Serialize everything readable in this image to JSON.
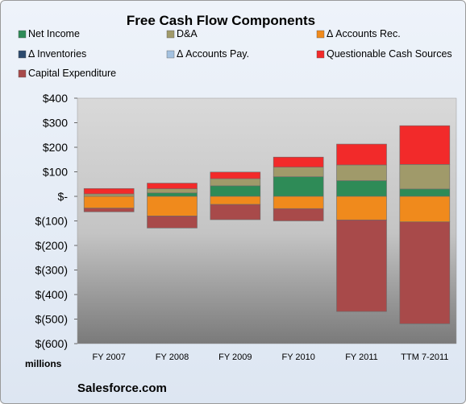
{
  "chart_data": {
    "type": "bar",
    "stacked": true,
    "title": "Free Cash Flow Components",
    "categories": [
      "FY 2007",
      "FY 2008",
      "FY 2009",
      "FY 2010",
      "FY 2011",
      "TTM 7-2011"
    ],
    "ylim": [
      -600,
      400
    ],
    "yticks": [
      400,
      300,
      200,
      100,
      0,
      -100,
      -200,
      -300,
      -400,
      -500,
      -600
    ],
    "ytick_labels": [
      "$400",
      "$300",
      "$200",
      "$100",
      "$-",
      "$(100)",
      "$(200)",
      "$(300)",
      "$(400)",
      "$(500)",
      "$(600)"
    ],
    "units_label": "millions",
    "legend_position": "top",
    "grid": false,
    "series": [
      {
        "name": "Net Income",
        "color": "#2e8b57",
        "values": [
          0,
          14,
          43,
          80,
          64,
          30
        ]
      },
      {
        "name": "D&A",
        "color": "#a09a6a",
        "values": [
          10,
          17,
          29,
          39,
          64,
          100
        ]
      },
      {
        "name": "Δ Accounts Rec.",
        "color": "#f08a1c",
        "values": [
          -48,
          -80,
          -33,
          -50,
          -96,
          -104
        ]
      },
      {
        "name": "Δ Inventories",
        "color": "#2c4a6e",
        "values": [
          0,
          0,
          0,
          0,
          0,
          0
        ]
      },
      {
        "name": "Δ Accounts Pay.",
        "color": "#a3c1e0",
        "values": [
          0,
          0,
          0,
          0,
          0,
          0
        ]
      },
      {
        "name": "Questionable Cash Sources",
        "color": "#f22a2a",
        "values": [
          22,
          23,
          27,
          41,
          85,
          158
        ]
      },
      {
        "name": "Capital Expenditure",
        "color": "#a84a4a",
        "values": [
          -15,
          -49,
          -62,
          -50,
          -373,
          -415
        ]
      }
    ]
  },
  "footer": {
    "source": "Salesforce.com"
  }
}
